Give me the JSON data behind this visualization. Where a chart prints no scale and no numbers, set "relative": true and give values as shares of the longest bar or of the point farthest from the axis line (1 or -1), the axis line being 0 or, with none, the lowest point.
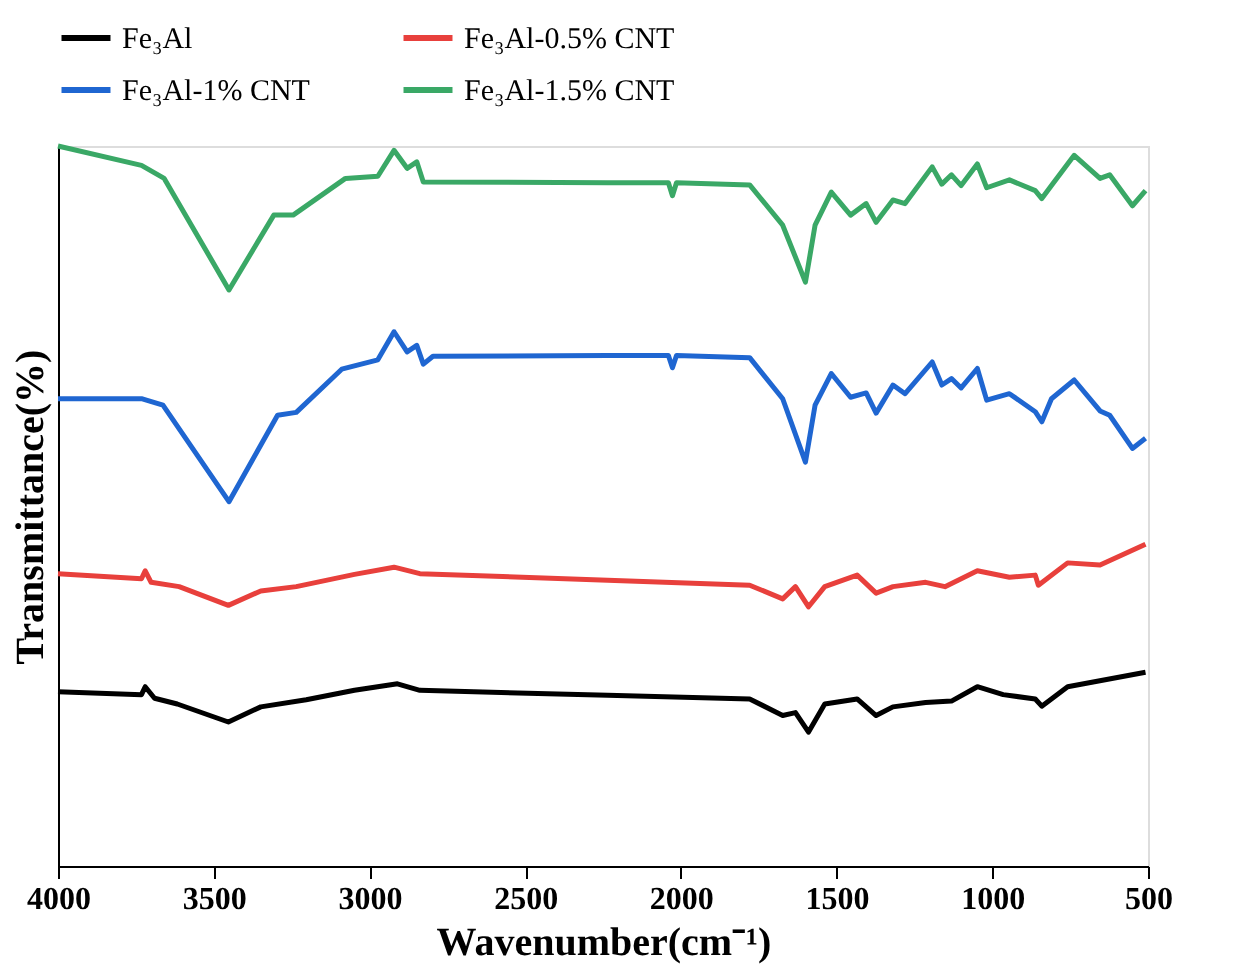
{
  "chart_data": {
    "type": "line",
    "xlabel": "Wavenumber(cm⁻¹)",
    "ylabel": "Transmittance(%)",
    "relative": true,
    "xlim": [
      4000,
      500
    ],
    "xticks": [
      4000,
      3500,
      3000,
      2500,
      2000,
      1500,
      1000,
      500
    ],
    "legend": "top",
    "grid": false,
    "marker": "none",
    "line_style": "solid",
    "series": [
      {
        "name": "Fe₃Al",
        "color": "#000000",
        "x": [
          4000,
          3732,
          3720,
          3690,
          3617,
          3453,
          3349,
          3203,
          3048,
          2910,
          2838,
          2235,
          1779,
          1673,
          1632,
          1590,
          1538,
          1434,
          1373,
          1319,
          1214,
          1131,
          1048,
          965,
          862,
          841,
          758,
          508
        ],
        "values": [
          0.242,
          0.238,
          0.249,
          0.233,
          0.225,
          0.2,
          0.221,
          0.231,
          0.244,
          0.253,
          0.244,
          0.237,
          0.232,
          0.209,
          0.213,
          0.186,
          0.225,
          0.232,
          0.209,
          0.221,
          0.227,
          0.229,
          0.249,
          0.238,
          0.232,
          0.222,
          0.249,
          0.269
        ]
      },
      {
        "name": "Fe₃Al-0.5% CNT",
        "color": "#e8403c",
        "x": [
          4000,
          3732,
          3720,
          3701,
          3611,
          3453,
          3349,
          3235,
          3048,
          2921,
          2838,
          2235,
          1779,
          1673,
          1632,
          1590,
          1538,
          1434,
          1373,
          1319,
          1214,
          1152,
          1048,
          945,
          862,
          852,
          758,
          654,
          508
        ],
        "values": [
          0.406,
          0.399,
          0.41,
          0.394,
          0.388,
          0.362,
          0.382,
          0.388,
          0.405,
          0.415,
          0.406,
          0.397,
          0.39,
          0.371,
          0.388,
          0.36,
          0.388,
          0.404,
          0.379,
          0.388,
          0.394,
          0.388,
          0.41,
          0.401,
          0.404,
          0.39,
          0.421,
          0.418,
          0.447
        ]
      },
      {
        "name": "Fe₃Al-1% CNT",
        "color": "#1f66d1",
        "x": [
          4000,
          3732,
          3663,
          3451,
          3295,
          3235,
          3089,
          2973,
          2921,
          2879,
          2848,
          2827,
          2796,
          2235,
          2040,
          2027,
          2014,
          1779,
          1673,
          1600,
          1569,
          1517,
          1455,
          1405,
          1373,
          1319,
          1280,
          1193,
          1162,
          1131,
          1100,
          1048,
          1018,
          945,
          862,
          841,
          810,
          737,
          654,
          623,
          550,
          508
        ],
        "values": [
          0.649,
          0.649,
          0.64,
          0.506,
          0.626,
          0.63,
          0.69,
          0.703,
          0.742,
          0.714,
          0.723,
          0.697,
          0.708,
          0.709,
          0.709,
          0.692,
          0.709,
          0.706,
          0.649,
          0.561,
          0.64,
          0.684,
          0.651,
          0.657,
          0.629,
          0.668,
          0.656,
          0.7,
          0.668,
          0.677,
          0.664,
          0.691,
          0.647,
          0.656,
          0.631,
          0.617,
          0.649,
          0.675,
          0.632,
          0.626,
          0.58,
          0.594
        ]
      },
      {
        "name": "Fe₃Al-1.5% CNT",
        "color": "#3aa866",
        "x": [
          4000,
          3732,
          3659,
          3451,
          3307,
          3245,
          3077,
          2973,
          2921,
          2879,
          2848,
          2827,
          2235,
          2040,
          2027,
          2014,
          1779,
          1673,
          1600,
          1569,
          1517,
          1455,
          1405,
          1373,
          1319,
          1280,
          1193,
          1162,
          1131,
          1100,
          1048,
          1018,
          945,
          862,
          841,
          810,
          737,
          654,
          623,
          550,
          508
        ],
        "values": [
          1.0,
          0.973,
          0.955,
          0.8,
          0.904,
          0.904,
          0.955,
          0.958,
          0.994,
          0.969,
          0.978,
          0.95,
          0.949,
          0.949,
          0.931,
          0.949,
          0.946,
          0.89,
          0.811,
          0.89,
          0.936,
          0.904,
          0.92,
          0.894,
          0.925,
          0.92,
          0.971,
          0.947,
          0.96,
          0.945,
          0.975,
          0.942,
          0.953,
          0.938,
          0.927,
          0.945,
          0.987,
          0.955,
          0.96,
          0.917,
          0.938
        ]
      }
    ]
  }
}
